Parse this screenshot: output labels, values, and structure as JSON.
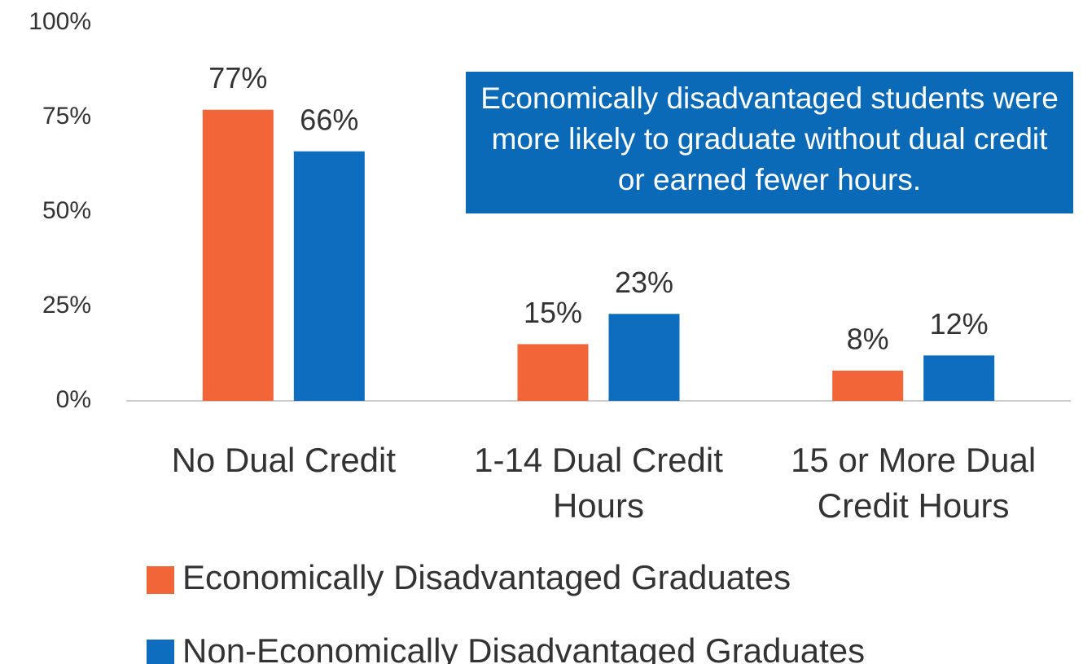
{
  "chart_data": {
    "type": "bar",
    "categories": [
      "No Dual Credit",
      "1-14 Dual Credit Hours",
      "15 or More Dual Credit Hours"
    ],
    "series": [
      {
        "name": "Economically Disadvantaged Graduates",
        "color": "#f26539",
        "values": [
          77,
          15,
          8
        ],
        "value_labels": [
          "77%",
          "15%",
          "8%"
        ]
      },
      {
        "name": "Non-Economically Disadvantaged Graduates",
        "color": "#0f6dbf",
        "values": [
          66,
          23,
          12
        ],
        "value_labels": [
          "66%",
          "23%",
          "12%"
        ]
      }
    ],
    "ylim": [
      0,
      100
    ],
    "yticks": [
      {
        "value": 0,
        "label": "0%"
      },
      {
        "value": 25,
        "label": "25%"
      },
      {
        "value": 50,
        "label": "50%"
      },
      {
        "value": 75,
        "label": "75%"
      },
      {
        "value": 100,
        "label": "100%"
      }
    ],
    "annotation": "Economically disadvantaged students were more likely to graduate without dual credit or earned fewer hours.",
    "annotation_color": "#0b6ab8",
    "grid": false
  }
}
